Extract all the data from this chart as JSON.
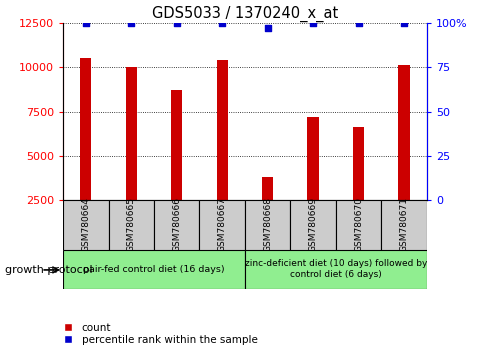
{
  "title": "GDS5033 / 1370240_x_at",
  "samples": [
    "GSM780664",
    "GSM780665",
    "GSM780666",
    "GSM780667",
    "GSM780668",
    "GSM780669",
    "GSM780670",
    "GSM780671"
  ],
  "counts": [
    10500,
    10000,
    8700,
    10400,
    3800,
    7200,
    6600,
    10100
  ],
  "percentile_ranks": [
    100,
    100,
    100,
    100,
    97,
    100,
    100,
    100
  ],
  "ylim_left": [
    2500,
    12500
  ],
  "ylim_right": [
    0,
    100
  ],
  "yticks_left": [
    2500,
    5000,
    7500,
    10000,
    12500
  ],
  "yticks_right": [
    0,
    25,
    50,
    75,
    100
  ],
  "bar_color": "#cc0000",
  "scatter_color": "#0000cc",
  "group1_label": "pair-fed control diet (16 days)",
  "group2_label": "zinc-deficient diet (10 days) followed by\ncontrol diet (6 days)",
  "group1_color": "#90ee90",
  "group2_color": "#90ee90",
  "tick_bg_color": "#cccccc",
  "legend_count_label": "count",
  "legend_pct_label": "percentile rank within the sample",
  "growth_protocol_label": "growth protocol",
  "bar_width": 0.25
}
